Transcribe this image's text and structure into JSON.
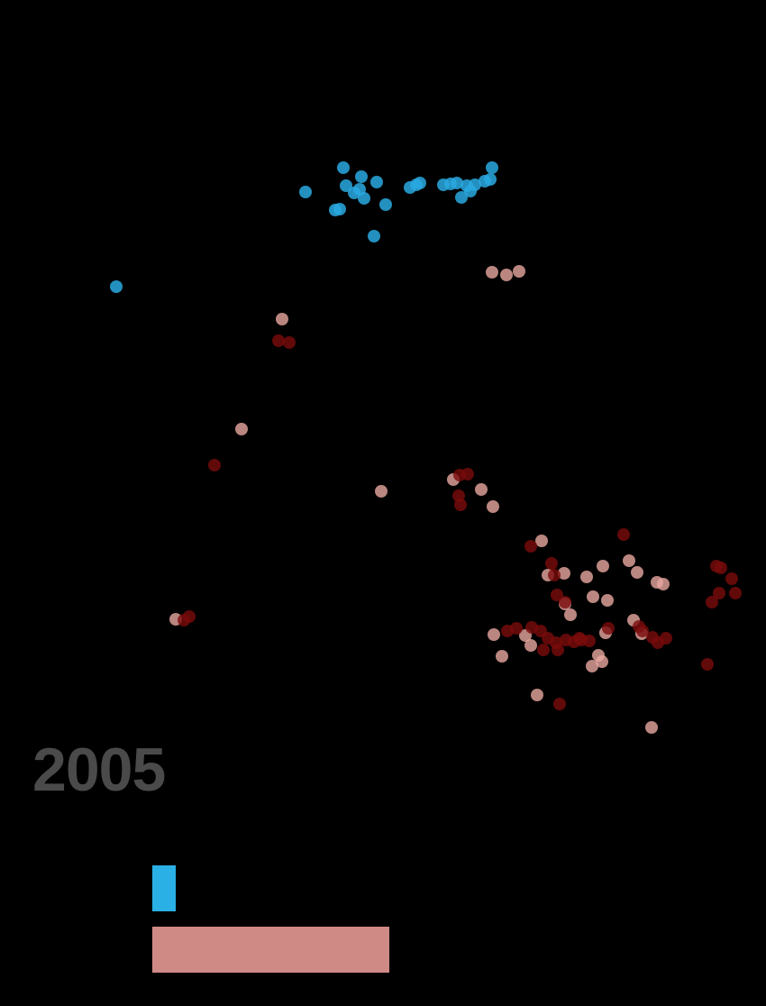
{
  "year": "2005",
  "colors": {
    "background": "#000000",
    "blue_points": "#29a9e0",
    "red_points_light": "#e8a7a0",
    "red_points_dark": "#7a0b0b",
    "blue_bar": "#2ab0e4",
    "red_bar": "#d08a86"
  },
  "chart_data": [
    {
      "type": "scatter",
      "title": "",
      "xlabel": "",
      "ylabel": "",
      "axes_visible": false,
      "grid": false,
      "x_range": [
        0,
        850
      ],
      "y_range": [
        0,
        820
      ],
      "series": [
        {
          "color": "#29a9e0",
          "points": [
            [
              129,
              318
            ],
            [
              339,
              213
            ],
            [
              372,
              233
            ],
            [
              377,
              232
            ],
            [
              381,
              186
            ],
            [
              384,
              206
            ],
            [
              393,
              214
            ],
            [
              401,
              196
            ],
            [
              404,
              220
            ],
            [
              399,
              210
            ],
            [
              415,
              262
            ],
            [
              418,
              202
            ],
            [
              428,
              227
            ],
            [
              455,
              208
            ],
            [
              462,
              205
            ],
            [
              466,
              203
            ],
            [
              492,
              205
            ],
            [
              500,
              204
            ],
            [
              507,
              203
            ],
            [
              512,
              219
            ],
            [
              518,
              206
            ],
            [
              522,
              212
            ],
            [
              527,
              205
            ],
            [
              538,
              201
            ],
            [
              544,
              199
            ],
            [
              546,
              186
            ]
          ]
        },
        {
          "color": "#e8a7a0",
          "points": [
            [
              546,
              302
            ],
            [
              562,
              305
            ],
            [
              576,
              301
            ],
            [
              313,
              354
            ],
            [
              268,
              476
            ],
            [
              423,
              545
            ],
            [
              503,
              532
            ],
            [
              534,
              543
            ],
            [
              547,
              562
            ],
            [
              601,
              600
            ],
            [
              608,
              638
            ],
            [
              626,
              636
            ],
            [
              651,
              640
            ],
            [
              669,
              628
            ],
            [
              698,
              622
            ],
            [
              707,
              635
            ],
            [
              729,
              646
            ],
            [
              736,
              648
            ],
            [
              658,
              662
            ],
            [
              674,
              666
            ],
            [
              195,
              687
            ],
            [
              633,
              682
            ],
            [
              548,
              704
            ],
            [
              557,
              728
            ],
            [
              583,
              705
            ],
            [
              664,
              727
            ],
            [
              657,
              739
            ],
            [
              672,
              702
            ],
            [
              703,
              688
            ],
            [
              712,
              703
            ],
            [
              596,
              771
            ],
            [
              723,
              807
            ],
            [
              589,
              716
            ],
            [
              627,
              670
            ],
            [
              668,
              734
            ]
          ]
        },
        {
          "color": "#7a0b0b",
          "points": [
            [
              309,
              378
            ],
            [
              321,
              380
            ],
            [
              238,
              516
            ],
            [
              510,
              527
            ],
            [
              519,
              526
            ],
            [
              509,
              550
            ],
            [
              511,
              560
            ],
            [
              589,
              606
            ],
            [
              692,
              593
            ],
            [
              612,
              625
            ],
            [
              615,
              638
            ],
            [
              618,
              660
            ],
            [
              627,
              668
            ],
            [
              210,
              684
            ],
            [
              204,
              688
            ],
            [
              795,
              628
            ],
            [
              800,
              630
            ],
            [
              812,
              642
            ],
            [
              816,
              658
            ],
            [
              798,
              658
            ],
            [
              790,
              668
            ],
            [
              563,
              700
            ],
            [
              573,
              697
            ],
            [
              590,
              696
            ],
            [
              600,
              700
            ],
            [
              608,
              708
            ],
            [
              617,
              713
            ],
            [
              628,
              710
            ],
            [
              637,
              712
            ],
            [
              645,
              710
            ],
            [
              654,
              711
            ],
            [
              603,
              721
            ],
            [
              619,
              721
            ],
            [
              643,
              708
            ],
            [
              675,
              697
            ],
            [
              709,
              695
            ],
            [
              713,
              700
            ],
            [
              724,
              707
            ],
            [
              730,
              713
            ],
            [
              739,
              708
            ],
            [
              785,
              737
            ],
            [
              621,
              781
            ]
          ]
        }
      ]
    },
    {
      "type": "bar",
      "orientation": "horizontal",
      "title": "",
      "axes_visible": false,
      "grid": false,
      "series": [
        {
          "color": "#2ab0e4",
          "values": [
            26
          ]
        },
        {
          "color": "#d08a86",
          "values": [
            263
          ]
        }
      ]
    }
  ]
}
